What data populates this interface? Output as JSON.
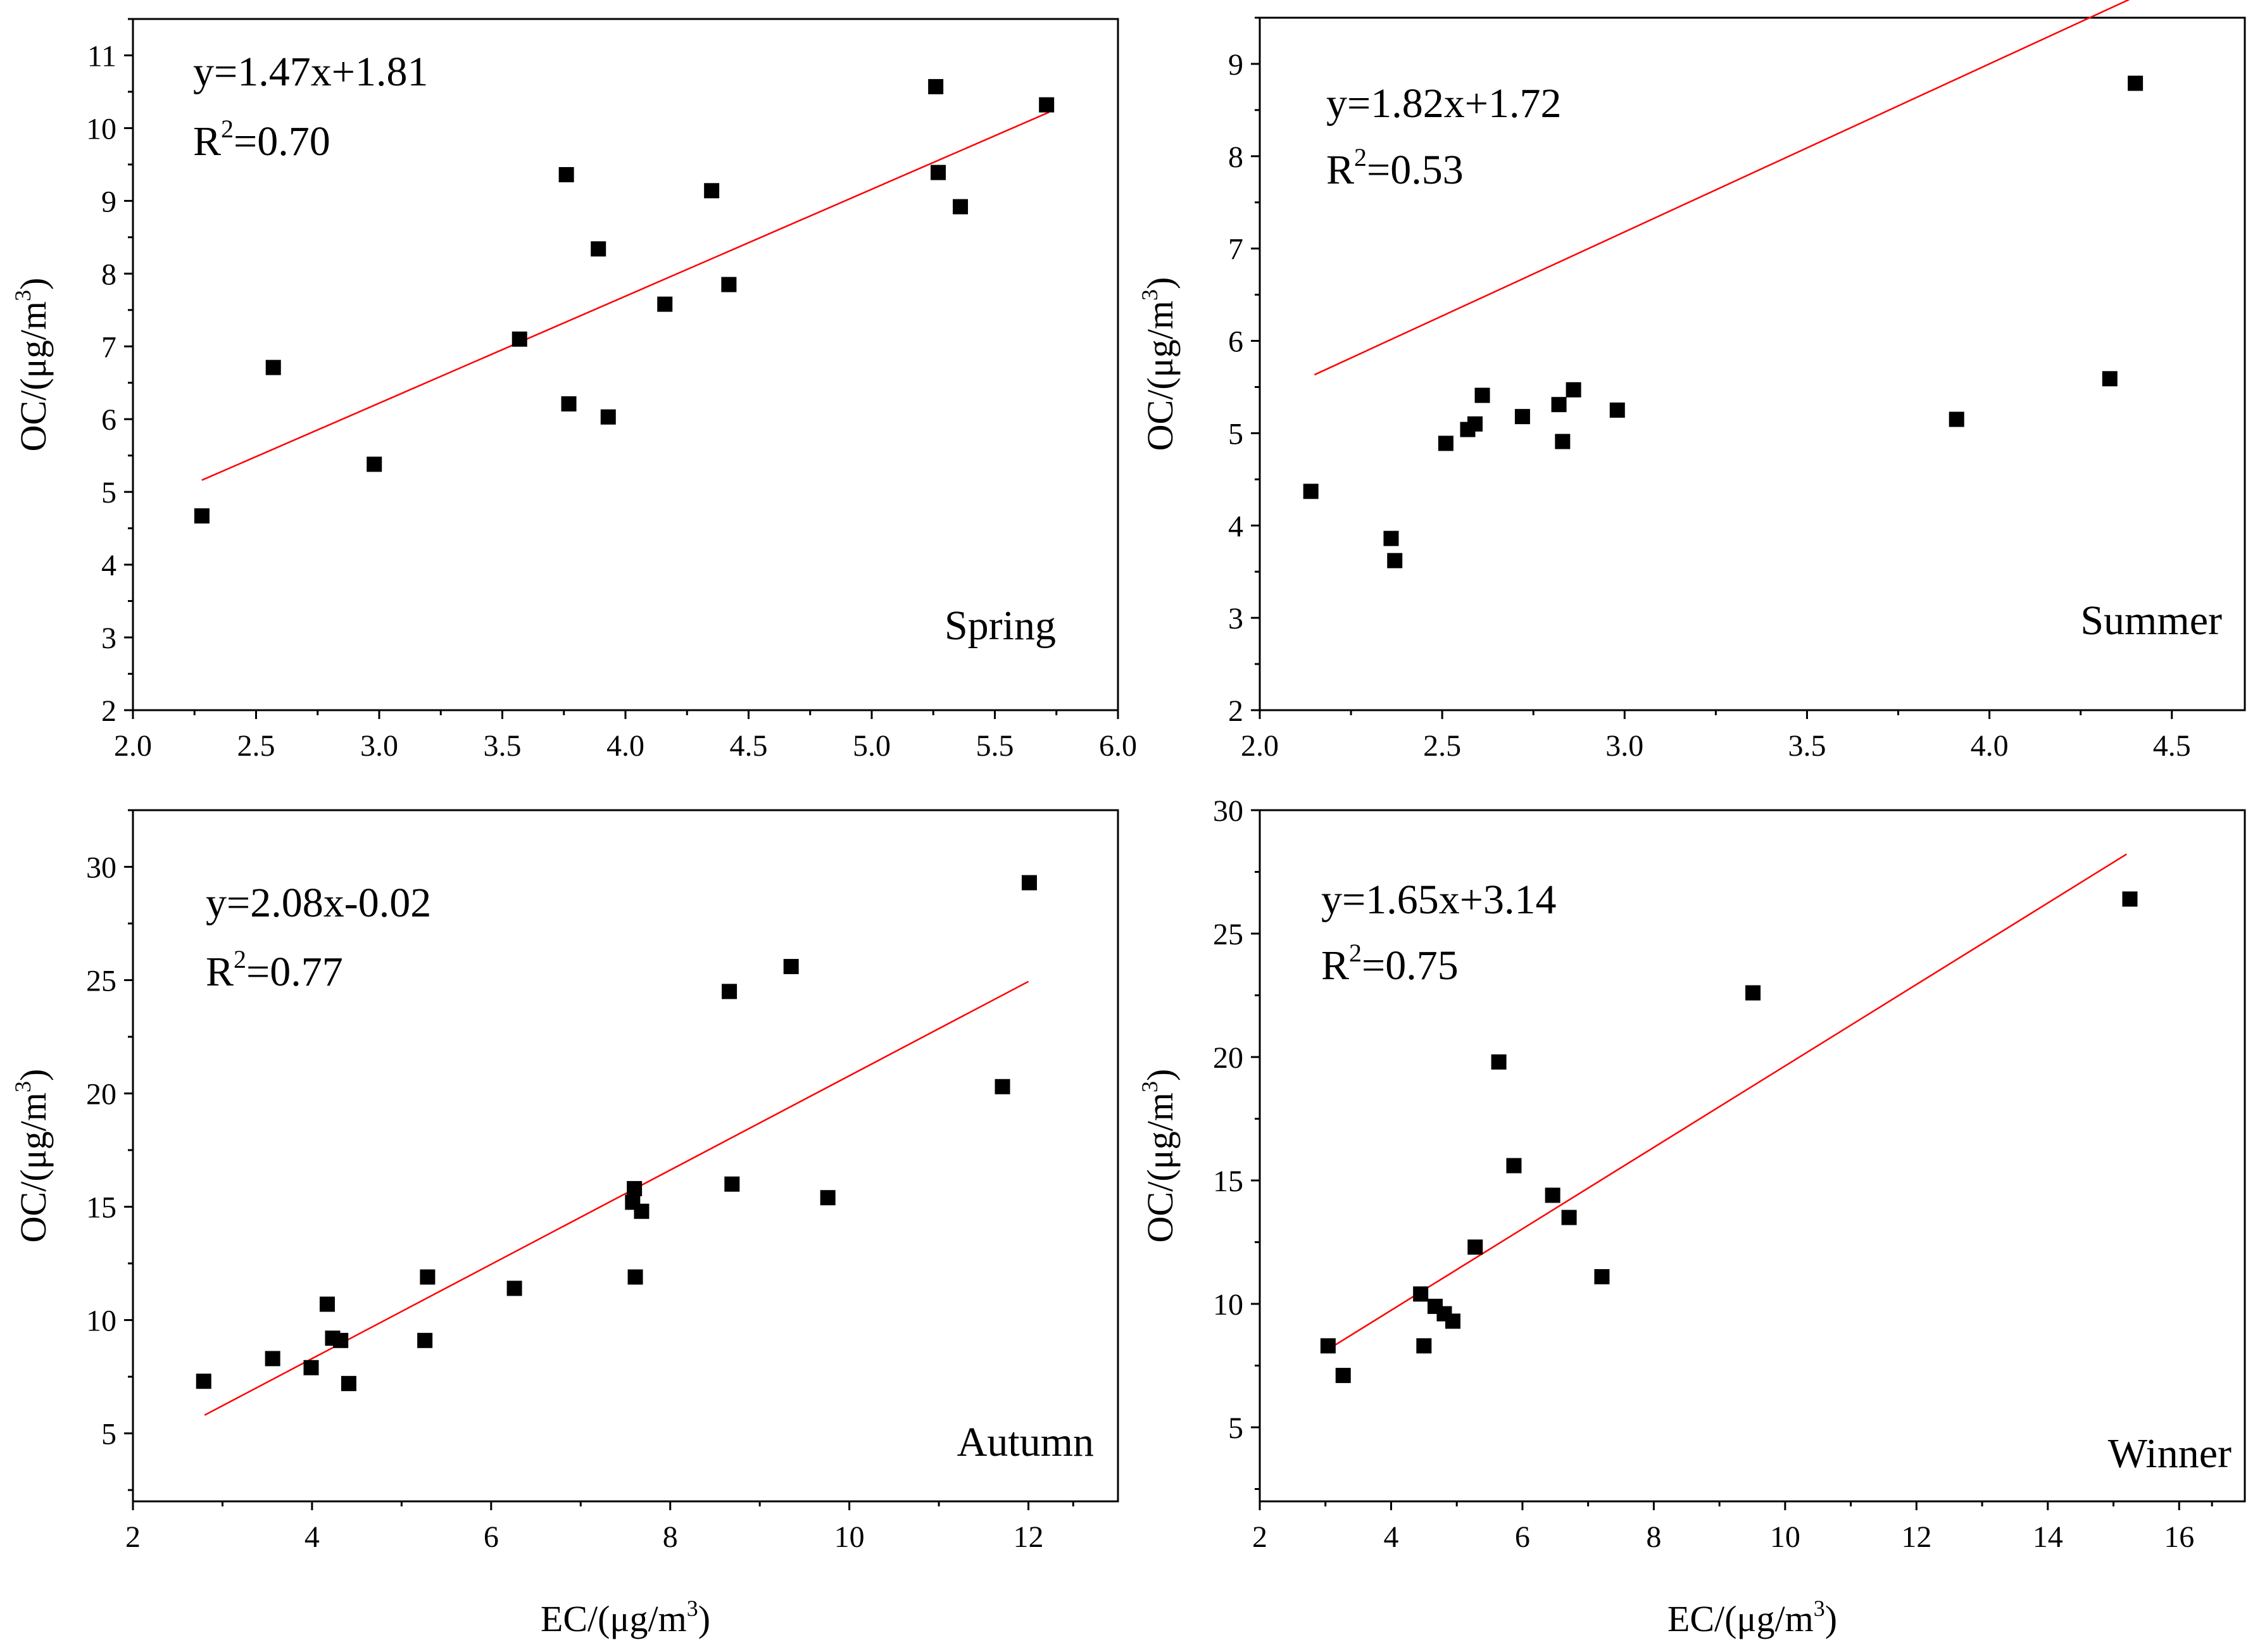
{
  "colors": {
    "points": "#000000",
    "fit_line": "#ff0000",
    "axes": "#000000",
    "background": "#ffffff"
  },
  "chart_data": [
    {
      "type": "scatter",
      "season_label": "Spring",
      "equation": "y=1.47x+1.81",
      "r2_label": "R",
      "r2_sup": "2",
      "r2_value": "=0.70",
      "ylabel": "OC/(μg/m3)",
      "xlabel": "",
      "xlim": [
        2.0,
        6.0
      ],
      "ylim": [
        2,
        11.5
      ],
      "xticks": [
        "2.0",
        "2.5",
        "3.0",
        "3.5",
        "4.0",
        "4.5",
        "5.0",
        "5.5",
        "6.0"
      ],
      "yticks": [
        "2",
        "3",
        "4",
        "5",
        "6",
        "7",
        "8",
        "9",
        "10",
        "11"
      ],
      "fit": {
        "x": [
          2.28,
          5.72
        ]
      },
      "x": [
        2.28,
        2.57,
        2.98,
        3.57,
        3.76,
        3.77,
        3.89,
        3.93,
        4.16,
        4.35,
        4.42,
        5.26,
        5.27,
        5.36,
        5.71
      ],
      "y": [
        4.67,
        6.71,
        5.38,
        7.1,
        9.36,
        6.21,
        8.34,
        6.03,
        7.58,
        9.14,
        7.85,
        10.57,
        9.39,
        8.92,
        10.32
      ]
    },
    {
      "type": "scatter",
      "season_label": "Summer",
      "equation": "y=1.82x+1.72",
      "r2_label": "R",
      "r2_sup": "2",
      "r2_value": "=0.53",
      "ylabel": "OC/(μg/m3)",
      "xlabel": "",
      "xlim": [
        2.0,
        4.7
      ],
      "ylim": [
        2,
        9.5
      ],
      "xticks": [
        "2.0",
        "2.5",
        "3.0",
        "3.5",
        "4.0",
        "4.5"
      ],
      "yticks": [
        "2",
        "3",
        "4",
        "5",
        "6",
        "7",
        "8",
        "9"
      ],
      "fit": {
        "x": [
          2.15,
          4.4
        ]
      },
      "x": [
        2.14,
        2.36,
        2.37,
        2.51,
        2.57,
        2.59,
        2.61,
        2.72,
        2.82,
        2.83,
        2.86,
        2.98,
        3.91,
        4.33,
        4.4
      ],
      "y": [
        4.37,
        3.86,
        3.62,
        4.89,
        5.04,
        5.1,
        5.41,
        5.18,
        5.31,
        4.91,
        5.47,
        5.25,
        5.15,
        5.59,
        8.79
      ]
    },
    {
      "type": "scatter",
      "season_label": "Autumn",
      "equation": "y=2.08x-0.02",
      "r2_label": "R",
      "r2_sup": "2",
      "r2_value": "=0.77",
      "ylabel": "OC/(μg/m3)",
      "xlabel": "EC/(μg/m3)",
      "xlim": [
        2,
        13
      ],
      "ylim": [
        2,
        32.5
      ],
      "xticks": [
        "2",
        "4",
        "6",
        "8",
        "10",
        "12"
      ],
      "yticks": [
        "5",
        "10",
        "15",
        "20",
        "25",
        "30"
      ],
      "fit": {
        "x": [
          2.8,
          12.0
        ]
      },
      "x": [
        2.79,
        3.56,
        3.99,
        4.17,
        4.23,
        4.32,
        4.41,
        5.26,
        5.29,
        6.26,
        7.58,
        7.6,
        7.61,
        7.68,
        8.66,
        8.69,
        9.35,
        9.76,
        11.71,
        12.01
      ],
      "y": [
        7.3,
        8.3,
        7.9,
        10.7,
        9.2,
        9.1,
        7.2,
        9.1,
        11.9,
        11.4,
        15.2,
        15.8,
        11.9,
        14.8,
        24.5,
        16.0,
        25.6,
        15.4,
        20.3,
        29.3
      ]
    },
    {
      "type": "scatter",
      "season_label": "Winner",
      "equation": "y=1.65x+3.14",
      "r2_label": "R",
      "r2_sup": "2",
      "r2_value": "=0.75",
      "ylabel": "OC/(μg/m3)",
      "xlabel": "EC/(μg/m3)",
      "xlim": [
        2,
        17
      ],
      "ylim": [
        2,
        30
      ],
      "xticks": [
        "2",
        "4",
        "6",
        "8",
        "10",
        "12",
        "14",
        "16"
      ],
      "yticks": [
        "5",
        "10",
        "15",
        "20",
        "25",
        "30"
      ],
      "fit": {
        "x": [
          3.0,
          15.2
        ]
      },
      "x": [
        3.04,
        3.27,
        4.45,
        4.5,
        4.67,
        4.81,
        4.94,
        5.28,
        5.64,
        5.87,
        6.46,
        6.71,
        7.21,
        9.51,
        15.25
      ],
      "y": [
        8.3,
        7.1,
        10.4,
        8.3,
        9.9,
        9.6,
        9.3,
        12.3,
        19.8,
        15.6,
        14.4,
        13.5,
        11.1,
        22.6,
        26.4
      ]
    }
  ]
}
